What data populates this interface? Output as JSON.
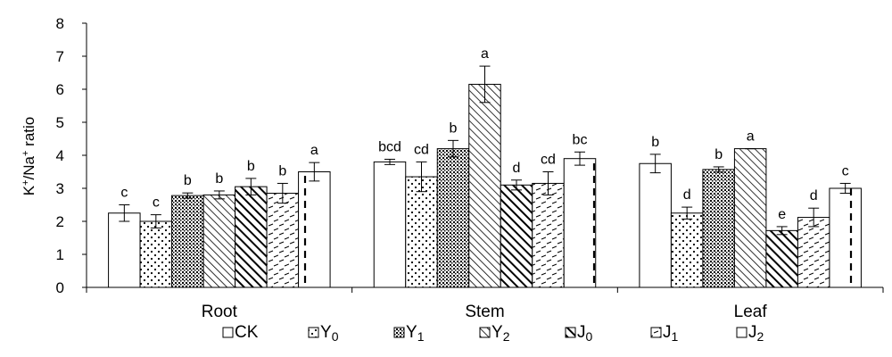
{
  "chart_data": {
    "type": "bar",
    "title": "",
    "xlabel": "",
    "ylabel": {
      "base": "K",
      "sup1": "+",
      "mid": "/Na",
      "sup2": "+",
      "tail": " ratio"
    },
    "ylim": [
      0,
      8
    ],
    "yticks": [
      "0",
      "1",
      "2",
      "3",
      "4",
      "5",
      "6",
      "7",
      "8"
    ],
    "grid": false,
    "legend_position": "bottom",
    "categories": [
      "Root",
      "Stem",
      "Leaf"
    ],
    "series": [
      {
        "name": "CK",
        "base": "CK",
        "sub": "",
        "pattern": "solid",
        "values": [
          2.25,
          3.8,
          3.75
        ],
        "errors": [
          0.25,
          0.08,
          0.28
        ],
        "labels": [
          "c",
          "bcd",
          "b"
        ]
      },
      {
        "name": "Y0",
        "base": "Y",
        "sub": "0",
        "pattern": "dots",
        "values": [
          2.0,
          3.35,
          2.25
        ],
        "errors": [
          0.2,
          0.45,
          0.18
        ],
        "labels": [
          "c",
          "cd",
          "d"
        ]
      },
      {
        "name": "Y1",
        "base": "Y",
        "sub": "1",
        "pattern": "densedots",
        "values": [
          2.78,
          4.2,
          3.57
        ],
        "errors": [
          0.08,
          0.25,
          0.08
        ],
        "labels": [
          "b",
          "b",
          "b"
        ]
      },
      {
        "name": "Y2",
        "base": "Y",
        "sub": "2",
        "pattern": "diag",
        "values": [
          2.8,
          6.15,
          4.2
        ],
        "errors": [
          0.12,
          0.55,
          0.0
        ],
        "labels": [
          "b",
          "a",
          "a"
        ]
      },
      {
        "name": "J0",
        "base": "J",
        "sub": "0",
        "pattern": "thickdiag",
        "values": [
          3.05,
          3.1,
          1.72
        ],
        "errors": [
          0.25,
          0.15,
          0.12
        ],
        "labels": [
          "b",
          "d",
          "e"
        ]
      },
      {
        "name": "J1",
        "base": "J",
        "sub": "1",
        "pattern": "dashes",
        "values": [
          2.85,
          3.15,
          2.12
        ],
        "errors": [
          0.3,
          0.35,
          0.28
        ],
        "labels": [
          "b",
          "cd",
          "d"
        ]
      },
      {
        "name": "J2",
        "base": "J",
        "sub": "2",
        "pattern": "vdash",
        "values": [
          3.5,
          3.9,
          3.0
        ],
        "errors": [
          0.28,
          0.2,
          0.15
        ],
        "labels": [
          "a",
          "bc",
          "c"
        ]
      }
    ]
  }
}
